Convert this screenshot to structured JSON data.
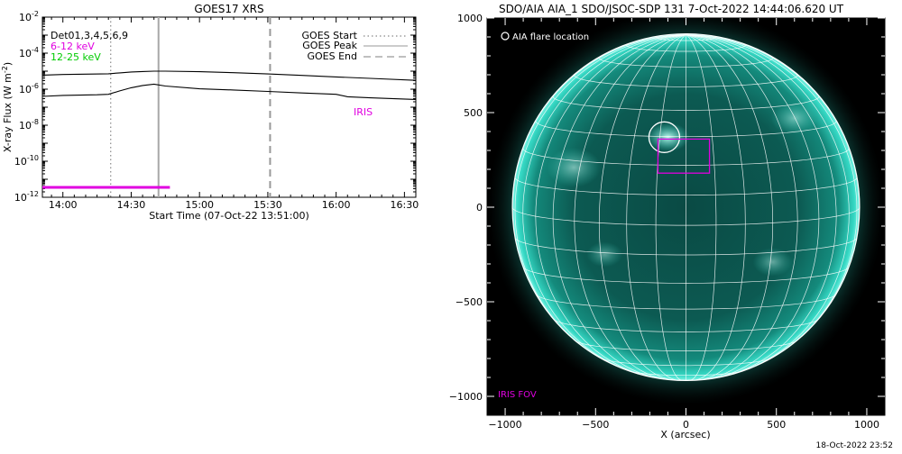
{
  "chart_data": [
    {
      "type": "line",
      "title": "GOES17 XRS",
      "xlabel": "Start Time (07-Oct-22 13:51:00)",
      "ylabel": "X-ray Flux (W m",
      "ylabel_sup": "-2",
      "ylabel_close": ")",
      "yscale": "log",
      "ylim": [
        1e-12,
        0.01
      ],
      "xlim": [
        "13:51",
        "16:35"
      ],
      "x_ticks": [
        "14:00",
        "14:30",
        "15:00",
        "15:30",
        "16:00",
        "16:30"
      ],
      "y_ticks": [
        {
          "base": "10",
          "exp": "-2",
          "value": 0.01
        },
        {
          "base": "10",
          "exp": "-4",
          "value": 0.0001
        },
        {
          "base": "10",
          "exp": "-6",
          "value": 1e-06
        },
        {
          "base": "10",
          "exp": "-8",
          "value": 1e-08
        },
        {
          "base": "10",
          "exp": "-10",
          "value": 1e-10
        },
        {
          "base": "10",
          "exp": "-12",
          "value": 1e-12
        }
      ],
      "channels": [
        {
          "label": "Det01,3,4,5,6,9",
          "color": "#000000"
        },
        {
          "label": "6-12 keV",
          "color": "#e000e0"
        },
        {
          "label": "12-25 keV",
          "color": "#00cc00"
        }
      ],
      "legend": [
        {
          "label": "GOES Start",
          "style": "dotted"
        },
        {
          "label": "GOES Peak",
          "style": "solid"
        },
        {
          "label": "GOES End",
          "style": "dashed"
        }
      ],
      "goes_start": "14:21",
      "goes_peak": "14:42",
      "goes_end": "15:31",
      "iris_label": "IRIS",
      "iris_color": "#e000e0",
      "iris_interval": [
        "13:51",
        "14:47"
      ],
      "series": [
        {
          "color": "#000000",
          "x": [
            "13:51",
            "14:00",
            "14:10",
            "14:20",
            "14:25",
            "14:30",
            "14:35",
            "14:40",
            "14:45",
            "15:00",
            "15:15",
            "15:30",
            "15:45",
            "16:00",
            "16:15",
            "16:35"
          ],
          "values": [
            6e-06,
            6.5e-06,
            6.8e-06,
            7.2e-06,
            8e-06,
            9e-06,
            9.6e-06,
            1e-05,
            1e-05,
            9.3e-06,
            8.2e-06,
            7e-06,
            5.8e-06,
            4.8e-06,
            4e-06,
            3.1e-06
          ]
        },
        {
          "color": "#000000",
          "x": [
            "13:51",
            "14:00",
            "14:10",
            "14:15",
            "14:20",
            "14:25",
            "14:30",
            "14:35",
            "14:40",
            "14:45",
            "15:00",
            "15:15",
            "15:30",
            "15:45",
            "16:00",
            "16:05",
            "16:15",
            "16:35"
          ],
          "values": [
            4e-07,
            4.5e-07,
            4.8e-07,
            4.9e-07,
            5.2e-07,
            8e-07,
            1.2e-06,
            1.6e-06,
            1.9e-06,
            1.5e-06,
            1.05e-06,
            9e-07,
            7.5e-07,
            6.2e-07,
            5.2e-07,
            3.8e-07,
            3.3e-07,
            2.7e-07
          ]
        }
      ]
    },
    {
      "type": "scatter",
      "title": "SDO/AIA AIA_1 SDO/JSOC-SDP 131  7-Oct-2022 14:44:06.620 UT",
      "xlabel": "X (arcsec)",
      "ylabel": "",
      "xlim": [
        -1100,
        1100
      ],
      "ylim": [
        -1100,
        1000
      ],
      "x_ticks": [
        -1000,
        -500,
        0,
        500,
        1000
      ],
      "x_tick_labels": [
        "−1000",
        "−500",
        "0",
        "500",
        "1000"
      ],
      "y_ticks": [
        1000,
        500,
        0,
        -500,
        -1000
      ],
      "y_tick_labels": [
        "1000",
        "500",
        "0",
        "−500",
        "−1000"
      ],
      "solar_radius_arcsec": 960,
      "legend_text": "AIA flare location",
      "flare_location": [
        -120,
        370
      ],
      "iris_fov_label": "IRIS FOV",
      "iris_fov": {
        "x": [
          -155,
          130
        ],
        "y": [
          180,
          360
        ]
      },
      "colors": {
        "disk": "#0f6f66",
        "grid": "#ffffff",
        "fov": "#e000e0",
        "background": "#000000"
      }
    }
  ],
  "footer": {
    "timestamp": "18-Oct-2022 23:52"
  }
}
